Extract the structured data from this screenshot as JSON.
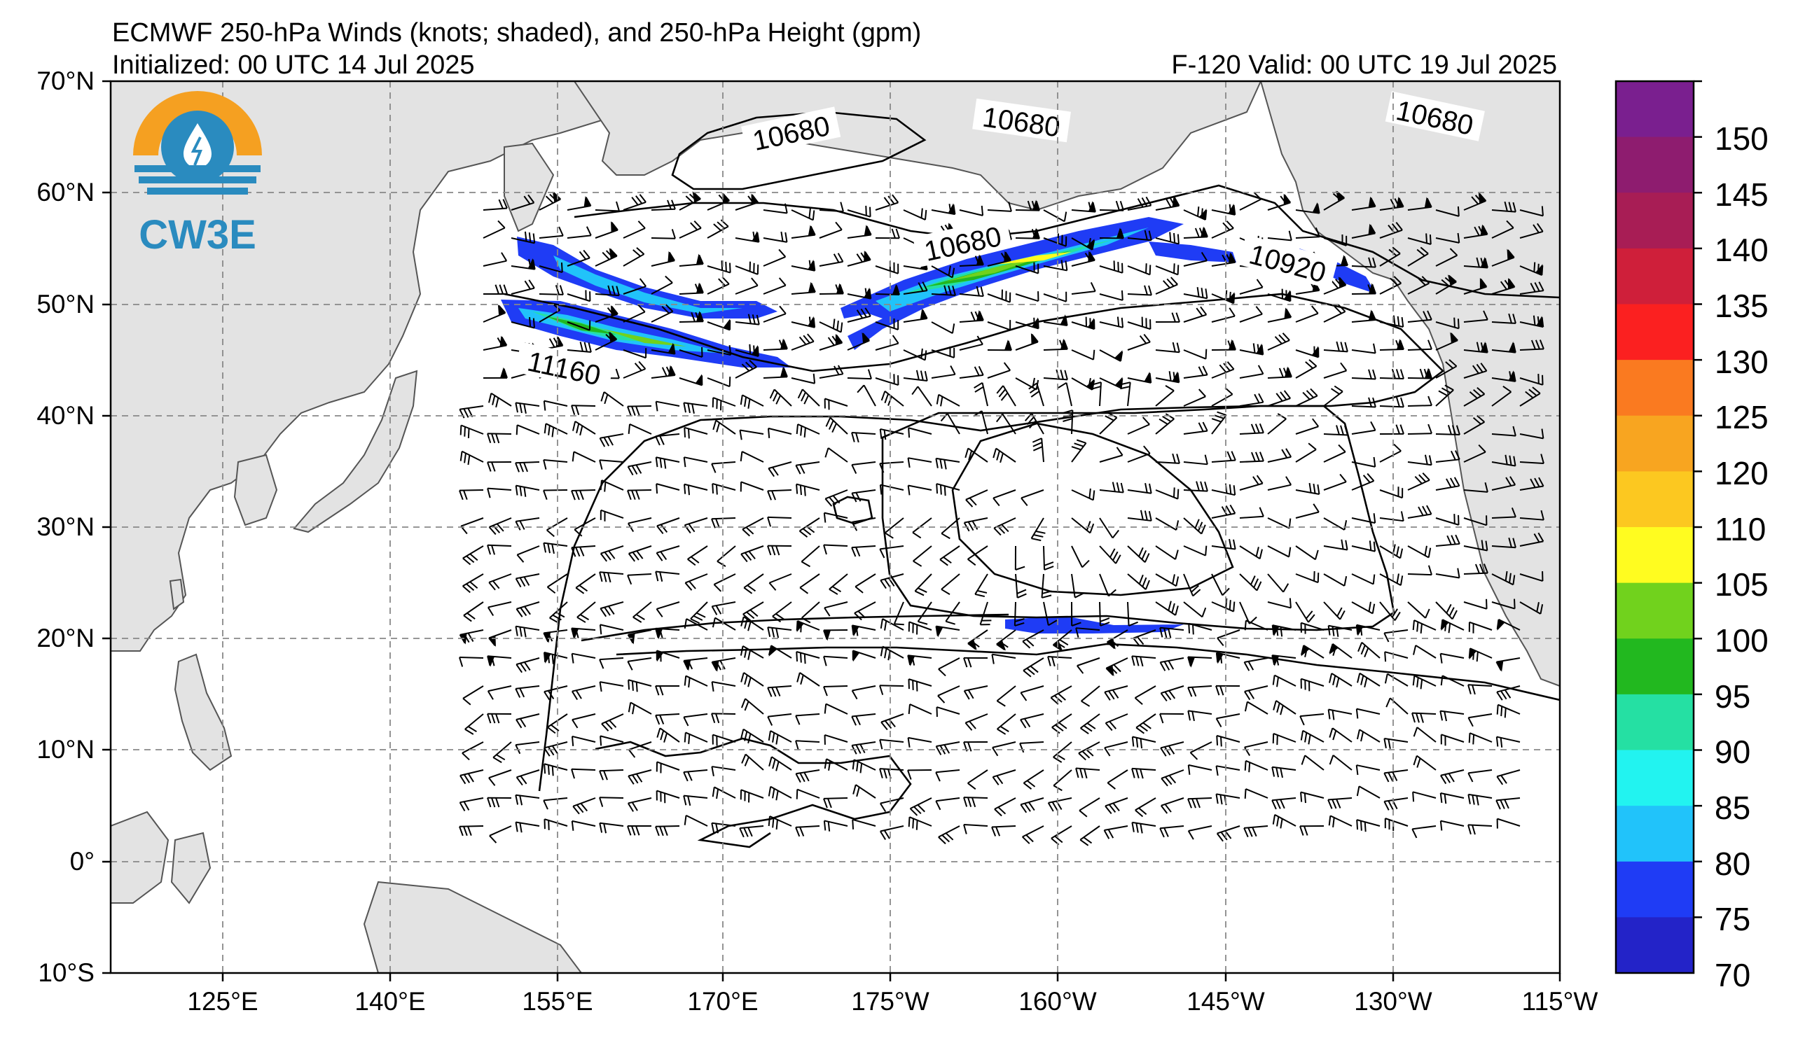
{
  "header": {
    "title": "ECMWF 250-hPa Winds (knots; shaded), and 250-hPa Height (gpm)",
    "init": "Initialized: 00 UTC 14 Jul 2025",
    "valid": "F-120  Valid: 00 UTC 19 Jul 2025"
  },
  "logo": {
    "text": "CW3E",
    "colors": {
      "orange": "#f5a021",
      "blue": "#2a8bbf"
    }
  },
  "axes": {
    "lat_labels": [
      "70°N",
      "60°N",
      "50°N",
      "40°N",
      "30°N",
      "20°N",
      "10°N",
      "0°",
      "10°S"
    ],
    "lon_labels": [
      "125°E",
      "140°E",
      "155°E",
      "170°E",
      "175°W",
      "160°W",
      "145°W",
      "130°W",
      "115°W"
    ]
  },
  "contour_labels": [
    "10680",
    "10680",
    "10680",
    "10680",
    "10920",
    "11160"
  ],
  "colorbar": {
    "labels": [
      "150",
      "145",
      "140",
      "135",
      "130",
      "125",
      "120",
      "110",
      "105",
      "100",
      "95",
      "90",
      "85",
      "80",
      "75",
      "70"
    ],
    "colors": [
      "#7a1f8f",
      "#8e1c6f",
      "#a81d55",
      "#cf1f3a",
      "#fb2020",
      "#fa7a20",
      "#f8a520",
      "#fcc820",
      "#fffc20",
      "#71d21d",
      "#22b81f",
      "#25e0a3",
      "#22f3f0",
      "#21c3fa",
      "#1f3cf5",
      "#2323c8"
    ]
  }
}
